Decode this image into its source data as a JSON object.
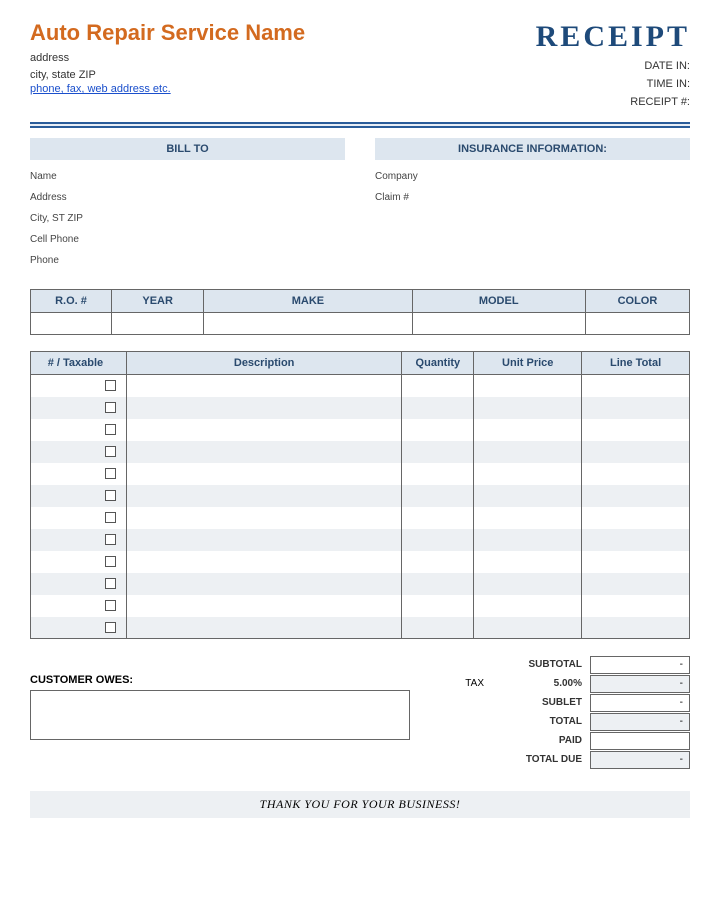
{
  "header": {
    "company_name": "Auto Repair Service Name",
    "address": "address",
    "city_state_zip": "city, state ZIP",
    "contact_link": "phone, fax, web address etc.",
    "receipt_title": "RECEIPT",
    "date_in_label": "DATE IN:",
    "time_in_label": "TIME IN:",
    "receipt_num_label": "RECEIPT #:"
  },
  "colors": {
    "accent_orange": "#d36a1f",
    "header_blue": "#1e4a7a",
    "section_bg": "#dde6ef",
    "stripe_bg": "#edf0f3",
    "border": "#666666",
    "divider_blue": "#2a5c9a",
    "link": "#1a4fcc"
  },
  "bill_to": {
    "header": "BILL TO",
    "name_label": "Name",
    "address_label": "Address",
    "city_label": "City, ST ZIP",
    "cell_label": "Cell Phone",
    "phone_label": "Phone"
  },
  "insurance": {
    "header": "INSURANCE INFORMATION:",
    "company_label": "Company",
    "claim_label": "Claim #"
  },
  "vehicle": {
    "columns": [
      "R.O. #",
      "YEAR",
      "MAKE",
      "MODEL",
      "COLOR"
    ]
  },
  "items": {
    "columns": [
      "# / Taxable",
      "Description",
      "Quantity",
      "Unit Price",
      "Line Total"
    ],
    "row_count": 12
  },
  "totals": {
    "subtotal_label": "SUBTOTAL",
    "subtotal_value": "-",
    "tax_prefix": "TAX",
    "tax_rate": "5.00%",
    "tax_value": "-",
    "sublet_label": "SUBLET",
    "sublet_value": "-",
    "total_label": "TOTAL",
    "total_value": "-",
    "paid_label": "PAID",
    "paid_value": "",
    "due_label": "TOTAL DUE",
    "due_value": "-"
  },
  "owes_label": "CUSTOMER OWES:",
  "thankyou": "THANK YOU FOR YOUR BUSINESS!"
}
